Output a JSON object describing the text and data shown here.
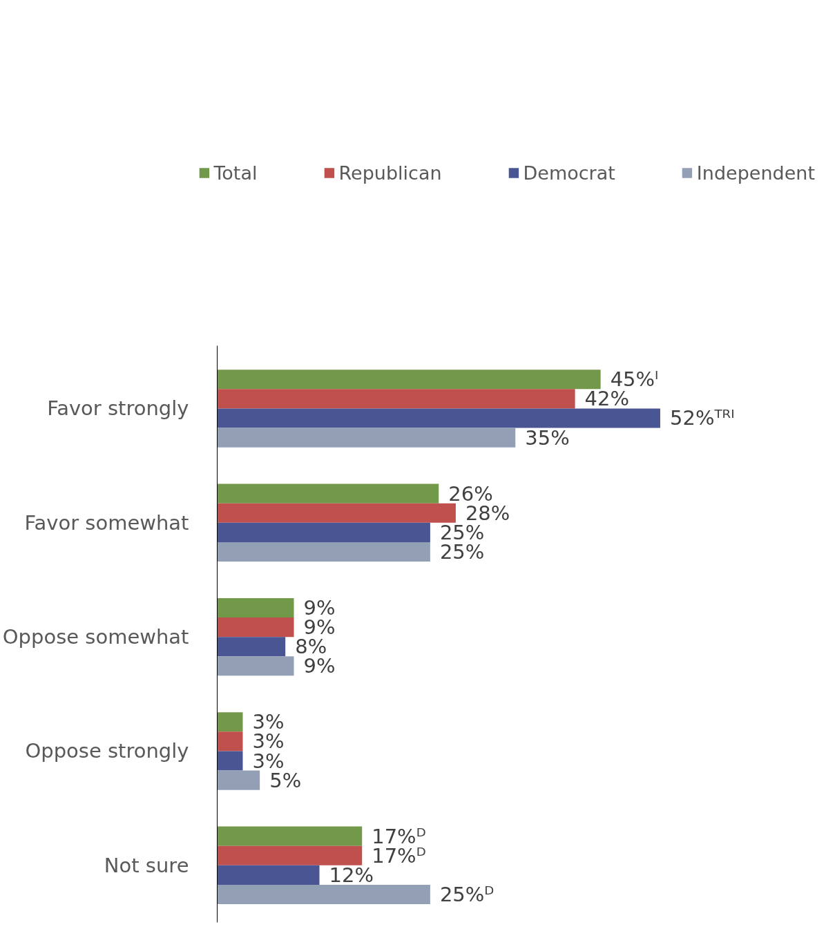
{
  "chart_data": {
    "type": "bar",
    "orientation": "horizontal",
    "categories": [
      "Favor strongly",
      "Favor somewhat",
      "Oppose somewhat",
      "Oppose strongly",
      "Not sure"
    ],
    "series": [
      {
        "name": "Total",
        "color": "#72994a",
        "values": [
          45,
          26,
          9,
          3,
          17
        ],
        "value_labels": [
          "45%ᴵ",
          "26%",
          "9%",
          "3%",
          "17%ᴰ"
        ]
      },
      {
        "name": "Republican",
        "color": "#c0504d",
        "values": [
          42,
          28,
          9,
          3,
          17
        ],
        "value_labels": [
          "42%",
          "28%",
          "9%",
          "3%",
          "17%ᴰ"
        ]
      },
      {
        "name": "Democrat",
        "color": "#4a5593",
        "values": [
          52,
          25,
          8,
          3,
          12
        ],
        "value_labels": [
          "52%ᵀᴿᴵ",
          "25%",
          "8%",
          "3%",
          "12%"
        ]
      },
      {
        "name": "Independent",
        "color": "#929fb5",
        "values": [
          35,
          25,
          9,
          5,
          25
        ],
        "value_labels": [
          "35%",
          "25%",
          "9%",
          "5%",
          "25%ᴰ"
        ]
      }
    ],
    "legend": "top",
    "grid": false
  }
}
